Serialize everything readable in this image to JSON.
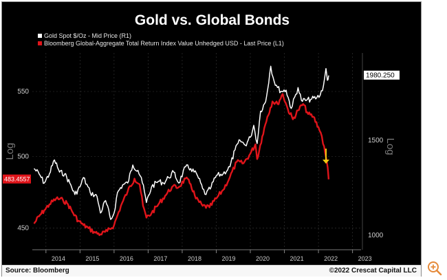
{
  "header": {
    "title": "Gold vs. Global Bonds"
  },
  "footer": {
    "source": "Source: Bloomberg",
    "copyright": "©2022 Crescat Capital LLC"
  },
  "icons": {
    "zoom": "zoom-in-icon"
  },
  "colors": {
    "background": "#000000",
    "gold_series": "#ffffff",
    "bonds_series": "#e0141a",
    "arrow": "#f2c80f",
    "gridline": "#3a3a3a"
  },
  "chart_data": {
    "type": "line",
    "title": "Gold vs. Global Bonds",
    "grid": true,
    "legend_position": "top-left",
    "x_tick_labels": [
      "2014",
      "2015",
      "2016",
      "2017",
      "2018",
      "2019",
      "2020",
      "2021",
      "2022",
      "2023"
    ],
    "xlim": [
      2013.6,
      2023.25
    ],
    "left_axis": {
      "label": "Log",
      "scale": "log",
      "ticks": [
        450,
        500,
        550
      ],
      "range": [
        436,
        582
      ]
    },
    "right_axis": {
      "label": "Log",
      "scale": "log",
      "ticks": [
        1000,
        1500
      ],
      "range": [
        940,
        2180
      ]
    },
    "series": [
      {
        "name": "Gold Spot $/Oz - Mid Price (R1)",
        "axis": "right",
        "color": "#ffffff",
        "last_value_label": "1980.250",
        "points": [
          [
            2013.65,
            1330
          ],
          [
            2013.8,
            1300
          ],
          [
            2013.95,
            1250
          ],
          [
            2014.1,
            1300
          ],
          [
            2014.25,
            1380
          ],
          [
            2014.4,
            1310
          ],
          [
            2014.55,
            1300
          ],
          [
            2014.7,
            1250
          ],
          [
            2014.85,
            1190
          ],
          [
            2015.0,
            1230
          ],
          [
            2015.1,
            1280
          ],
          [
            2015.3,
            1200
          ],
          [
            2015.5,
            1180
          ],
          [
            2015.6,
            1100
          ],
          [
            2015.75,
            1160
          ],
          [
            2015.9,
            1070
          ],
          [
            2016.0,
            1100
          ],
          [
            2016.1,
            1200
          ],
          [
            2016.25,
            1240
          ],
          [
            2016.4,
            1250
          ],
          [
            2016.55,
            1350
          ],
          [
            2016.7,
            1320
          ],
          [
            2016.8,
            1280
          ],
          [
            2016.95,
            1150
          ],
          [
            2017.1,
            1230
          ],
          [
            2017.3,
            1260
          ],
          [
            2017.45,
            1250
          ],
          [
            2017.6,
            1280
          ],
          [
            2017.75,
            1310
          ],
          [
            2017.9,
            1250
          ],
          [
            2018.1,
            1340
          ],
          [
            2018.25,
            1330
          ],
          [
            2018.45,
            1290
          ],
          [
            2018.6,
            1220
          ],
          [
            2018.7,
            1190
          ],
          [
            2018.85,
            1230
          ],
          [
            2019.0,
            1290
          ],
          [
            2019.2,
            1300
          ],
          [
            2019.4,
            1340
          ],
          [
            2019.55,
            1440
          ],
          [
            2019.7,
            1500
          ],
          [
            2019.85,
            1470
          ],
          [
            2020.0,
            1520
          ],
          [
            2020.1,
            1600
          ],
          [
            2020.2,
            1480
          ],
          [
            2020.3,
            1700
          ],
          [
            2020.45,
            1770
          ],
          [
            2020.6,
            2060
          ],
          [
            2020.7,
            1930
          ],
          [
            2020.8,
            1880
          ],
          [
            2020.9,
            1850
          ],
          [
            2021.05,
            1860
          ],
          [
            2021.2,
            1720
          ],
          [
            2021.4,
            1880
          ],
          [
            2021.5,
            1780
          ],
          [
            2021.65,
            1780
          ],
          [
            2021.8,
            1790
          ],
          [
            2021.95,
            1800
          ],
          [
            2022.05,
            1820
          ],
          [
            2022.15,
            1900
          ],
          [
            2022.22,
            2040
          ],
          [
            2022.26,
            1940
          ],
          [
            2022.3,
            1980
          ]
        ]
      },
      {
        "name": "Bloomberg Global-Aggregate Total Return Index Value Unhedged USD - Last Price (L1)",
        "axis": "left",
        "color": "#e0141a",
        "last_value_label": "483.4557",
        "points": [
          [
            2013.65,
            453
          ],
          [
            2013.8,
            458
          ],
          [
            2013.95,
            462
          ],
          [
            2014.1,
            466
          ],
          [
            2014.3,
            470
          ],
          [
            2014.5,
            469
          ],
          [
            2014.65,
            466
          ],
          [
            2014.8,
            460
          ],
          [
            2014.95,
            455
          ],
          [
            2015.1,
            452
          ],
          [
            2015.25,
            450
          ],
          [
            2015.45,
            447
          ],
          [
            2015.6,
            446
          ],
          [
            2015.8,
            448
          ],
          [
            2016.0,
            452
          ],
          [
            2016.2,
            465
          ],
          [
            2016.4,
            475
          ],
          [
            2016.6,
            484
          ],
          [
            2016.75,
            480
          ],
          [
            2016.85,
            465
          ],
          [
            2016.95,
            457
          ],
          [
            2017.1,
            460
          ],
          [
            2017.3,
            466
          ],
          [
            2017.5,
            472
          ],
          [
            2017.7,
            478
          ],
          [
            2017.9,
            478
          ],
          [
            2018.1,
            484
          ],
          [
            2018.25,
            480
          ],
          [
            2018.4,
            470
          ],
          [
            2018.6,
            465
          ],
          [
            2018.8,
            464
          ],
          [
            2019.0,
            470
          ],
          [
            2019.2,
            476
          ],
          [
            2019.4,
            485
          ],
          [
            2019.6,
            496
          ],
          [
            2019.8,
            495
          ],
          [
            2020.0,
            502
          ],
          [
            2020.15,
            509
          ],
          [
            2020.2,
            498
          ],
          [
            2020.35,
            515
          ],
          [
            2020.5,
            530
          ],
          [
            2020.65,
            542
          ],
          [
            2020.8,
            540
          ],
          [
            2020.95,
            548
          ],
          [
            2021.1,
            536
          ],
          [
            2021.25,
            528
          ],
          [
            2021.4,
            535
          ],
          [
            2021.55,
            540
          ],
          [
            2021.7,
            532
          ],
          [
            2021.85,
            530
          ],
          [
            2022.0,
            522
          ],
          [
            2022.1,
            515
          ],
          [
            2022.2,
            502
          ],
          [
            2022.27,
            492
          ],
          [
            2022.3,
            483.4557
          ]
        ]
      }
    ],
    "annotations": [
      {
        "type": "arrow",
        "direction": "down",
        "color": "#f2c80f"
      }
    ]
  }
}
